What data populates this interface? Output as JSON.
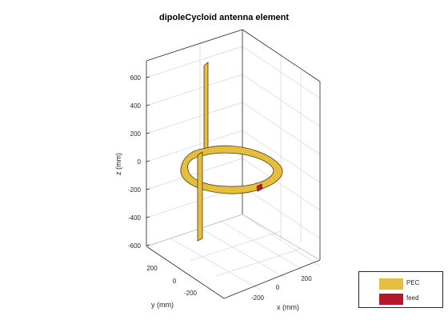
{
  "figure": {
    "title": "dipoleCycloid antenna element"
  },
  "axes": {
    "z_label": "z (mm)",
    "y_label": "y (mm)",
    "x_label": "x (mm)",
    "z_ticks": [
      "600",
      "400",
      "200",
      "0",
      "-200",
      "-400",
      "-600"
    ],
    "y_ticks": [
      "200",
      "0",
      "-200"
    ],
    "x_ticks": [
      "-200",
      "0",
      "200"
    ],
    "grid": true
  },
  "legend": {
    "items": [
      {
        "label": "PEC",
        "color": "#E6BE3E"
      },
      {
        "label": "feed",
        "color": "#B5182D"
      }
    ]
  },
  "colors": {
    "metal": "#E6BE3E",
    "metal_edge": "#4A3A10",
    "feed": "#B5182D",
    "axis": "#262626",
    "grid": "#E1E1E1"
  }
}
